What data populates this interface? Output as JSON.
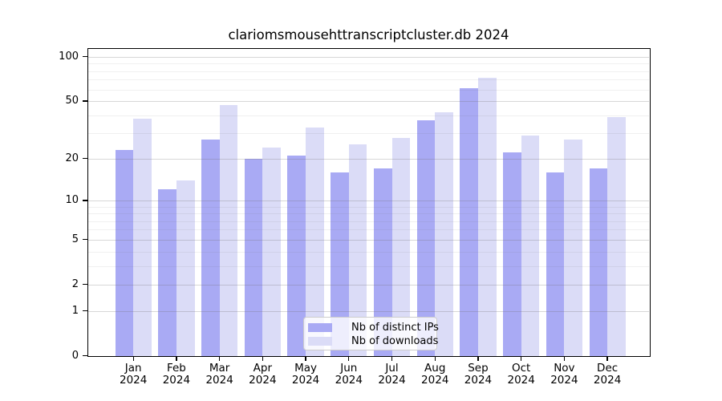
{
  "page": {
    "background": "#ffffff"
  },
  "chart_data": {
    "type": "bar",
    "title": "clariomsmousehttranscriptcluster.db 2024",
    "categories": [
      "Jan",
      "Feb",
      "Mar",
      "Apr",
      "May",
      "Jun",
      "Jul",
      "Aug",
      "Sep",
      "Oct",
      "Nov",
      "Dec"
    ],
    "year_label": "2024",
    "series": [
      {
        "name": "Nb of distinct IPs",
        "color": "#a9aaf4",
        "values": [
          23,
          12,
          27,
          20,
          21,
          16,
          17,
          37,
          61,
          22,
          16,
          17
        ]
      },
      {
        "name": "Nb of downloads",
        "color": "#dbdcf7",
        "values": [
          38,
          14,
          47,
          24,
          33,
          25,
          28,
          42,
          72,
          29,
          27,
          39
        ]
      }
    ],
    "y_scale": "log1p",
    "ylim": [
      0,
      113
    ],
    "y_ticks": [
      0,
      1,
      2,
      5,
      10,
      20,
      50,
      100
    ],
    "grid_values_major": [
      1,
      2,
      5,
      10,
      20,
      50,
      100
    ],
    "grid_values_minor": [
      3,
      4,
      6,
      7,
      8,
      9,
      30,
      40,
      60,
      70,
      80,
      90
    ],
    "grid": "on",
    "legend_position": "lower-center",
    "axis_color": "#000000"
  }
}
